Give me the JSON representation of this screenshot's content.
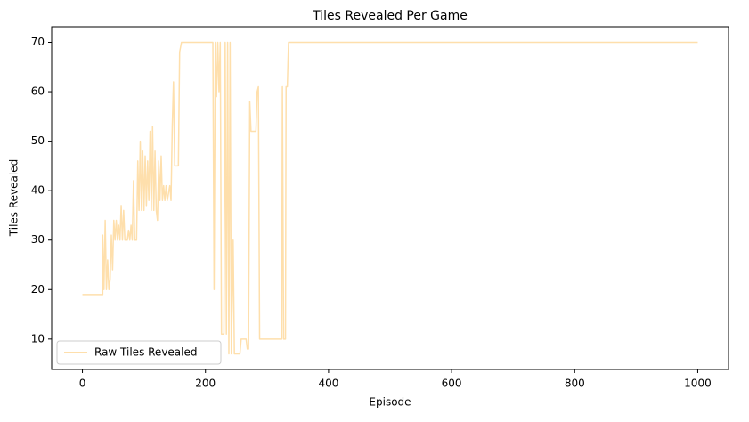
{
  "chart_data": {
    "type": "line",
    "title": "Tiles Revealed Per Game",
    "x_label": "Episode",
    "y_label": "Tiles Revealed",
    "xlim": [
      -50,
      1050
    ],
    "xticks": [
      0,
      200,
      400,
      600,
      800,
      1000
    ],
    "ylim": [
      3.85,
      73.15
    ],
    "yticks": [
      10,
      20,
      30,
      40,
      50,
      60,
      70
    ],
    "legend": "lower left",
    "series": [
      {
        "name": "Raw Tiles Revealed",
        "color": "#fedfac",
        "x": [
          0,
          33,
          33,
          35,
          37,
          39,
          41,
          43,
          45,
          47,
          49,
          51,
          53,
          55,
          57,
          59,
          61,
          63,
          65,
          67,
          69,
          73,
          75,
          77,
          79,
          81,
          83,
          85,
          88,
          90,
          92,
          94,
          96,
          98,
          100,
          102,
          104,
          106,
          108,
          110,
          112,
          114,
          116,
          118,
          120,
          122,
          124,
          126,
          128,
          130,
          132,
          134,
          136,
          138,
          142,
          144,
          146,
          148,
          150,
          156,
          158,
          161,
          165,
          212,
          214,
          216,
          218,
          220,
          222,
          224,
          226,
          230,
          232,
          234,
          236,
          238,
          240,
          242,
          245,
          247,
          256,
          258,
          266,
          268,
          270,
          272,
          274,
          282,
          284,
          286,
          288,
          324,
          325,
          327,
          330,
          331,
          333,
          335,
          1000
        ],
        "values": [
          19,
          19,
          31,
          20,
          34,
          20,
          26,
          20,
          22,
          31,
          24,
          34,
          30,
          34,
          30,
          33,
          30,
          37,
          30,
          36,
          30,
          30,
          32,
          30,
          33,
          30,
          42,
          30,
          30,
          46,
          36,
          50,
          36,
          48,
          36,
          47,
          37,
          46,
          38,
          52,
          36,
          53,
          36,
          48,
          36,
          34,
          46,
          38,
          47,
          38,
          41,
          38,
          41,
          38,
          41,
          38,
          53,
          62,
          45,
          45,
          68,
          70,
          70,
          70,
          20,
          70,
          59,
          70,
          60,
          70,
          11,
          11,
          70,
          11,
          70,
          7,
          70,
          7,
          30,
          7,
          7,
          10,
          10,
          8,
          8,
          58,
          52,
          52,
          60,
          61,
          10,
          10,
          61,
          10,
          10,
          61,
          61,
          70,
          70
        ]
      }
    ]
  }
}
